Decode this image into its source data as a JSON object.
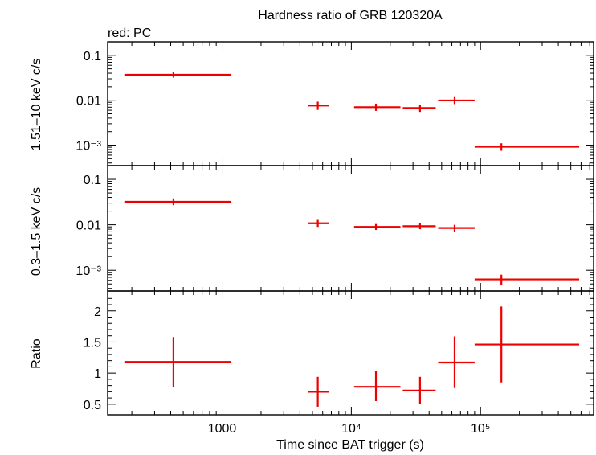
{
  "title": "Hardness ratio of GRB 120320A",
  "series_label": "red: PC",
  "xlabel": "Time since BAT trigger (s)",
  "colors": {
    "series": "#ee0000",
    "axes": "#000000"
  },
  "chart_data": [
    {
      "type": "scatter",
      "panel": "top",
      "ylabel": "1.51–10 keV c/s",
      "xscale": "log",
      "yscale": "log",
      "xlim": [
        130,
        750000
      ],
      "ylim": [
        0.00035,
        0.2
      ],
      "ytick_values": [
        0.001,
        0.01,
        0.1
      ],
      "ytick_labels": [
        "10⁻³",
        "0.01",
        "0.1"
      ],
      "points": [
        {
          "x": 420,
          "xlo": 175,
          "xhi": 1180,
          "y": 0.037,
          "ylo": 0.032,
          "yhi": 0.043
        },
        {
          "x": 5500,
          "xlo": 4600,
          "xhi": 6700,
          "y": 0.0076,
          "ylo": 0.0061,
          "yhi": 0.0093
        },
        {
          "x": 15500,
          "xlo": 10500,
          "xhi": 24000,
          "y": 0.007,
          "ylo": 0.0058,
          "yhi": 0.0084
        },
        {
          "x": 34000,
          "xlo": 25000,
          "xhi": 45000,
          "y": 0.0067,
          "ylo": 0.0055,
          "yhi": 0.008
        },
        {
          "x": 63000,
          "xlo": 47000,
          "xhi": 90000,
          "y": 0.0099,
          "ylo": 0.0082,
          "yhi": 0.0118
        },
        {
          "x": 145000,
          "xlo": 90000,
          "xhi": 580000,
          "y": 0.00092,
          "ylo": 0.00075,
          "yhi": 0.0011
        }
      ]
    },
    {
      "type": "scatter",
      "panel": "middle",
      "ylabel": "0.3–1.5 keV c/s",
      "xscale": "log",
      "yscale": "log",
      "xlim": [
        130,
        750000
      ],
      "ylim": [
        0.00035,
        0.2
      ],
      "ytick_values": [
        0.001,
        0.01,
        0.1
      ],
      "ytick_labels": [
        "10⁻³",
        "0.01",
        "0.1"
      ],
      "points": [
        {
          "x": 420,
          "xlo": 175,
          "xhi": 1180,
          "y": 0.032,
          "ylo": 0.027,
          "yhi": 0.038
        },
        {
          "x": 5500,
          "xlo": 4600,
          "xhi": 6700,
          "y": 0.0108,
          "ylo": 0.009,
          "yhi": 0.0128
        },
        {
          "x": 15500,
          "xlo": 10500,
          "xhi": 24000,
          "y": 0.009,
          "ylo": 0.0077,
          "yhi": 0.0104
        },
        {
          "x": 34000,
          "xlo": 25000,
          "xhi": 45000,
          "y": 0.0093,
          "ylo": 0.008,
          "yhi": 0.0108
        },
        {
          "x": 63000,
          "xlo": 47000,
          "xhi": 90000,
          "y": 0.0085,
          "ylo": 0.0071,
          "yhi": 0.01
        },
        {
          "x": 145000,
          "xlo": 90000,
          "xhi": 580000,
          "y": 0.00063,
          "ylo": 0.00048,
          "yhi": 0.0008
        }
      ]
    },
    {
      "type": "scatter",
      "panel": "bottom",
      "ylabel": "Ratio",
      "xscale": "log",
      "yscale": "linear",
      "xlim": [
        130,
        750000
      ],
      "ylim": [
        0.33,
        2.32
      ],
      "ytick_values": [
        0.5,
        1,
        1.5,
        2
      ],
      "ytick_labels": [
        "0.5",
        "1",
        "1.5",
        "2"
      ],
      "xtick_values": [
        1000,
        10000,
        100000
      ],
      "xtick_labels": [
        "1000",
        "10⁴",
        "10⁵"
      ],
      "points": [
        {
          "x": 420,
          "xlo": 175,
          "xhi": 1180,
          "y": 1.18,
          "ylo": 0.78,
          "yhi": 1.58
        },
        {
          "x": 5500,
          "xlo": 4600,
          "xhi": 6700,
          "y": 0.7,
          "ylo": 0.46,
          "yhi": 0.94
        },
        {
          "x": 15500,
          "xlo": 10500,
          "xhi": 24000,
          "y": 0.78,
          "ylo": 0.55,
          "yhi": 1.03
        },
        {
          "x": 34000,
          "xlo": 25000,
          "xhi": 45000,
          "y": 0.72,
          "ylo": 0.5,
          "yhi": 0.94
        },
        {
          "x": 63000,
          "xlo": 47000,
          "xhi": 90000,
          "y": 1.17,
          "ylo": 0.76,
          "yhi": 1.59
        },
        {
          "x": 145000,
          "xlo": 90000,
          "xhi": 580000,
          "y": 1.46,
          "ylo": 0.85,
          "yhi": 2.07
        }
      ]
    }
  ]
}
